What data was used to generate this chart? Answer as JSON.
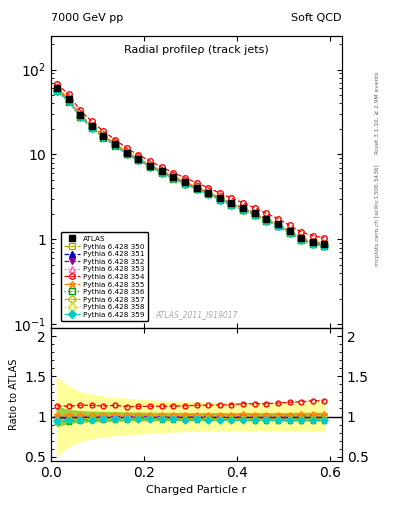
{
  "title": "Radial profileρ (track jets)",
  "top_left_label": "7000 GeV pp",
  "top_right_label": "Soft QCD",
  "xlabel": "Charged Particle r",
  "ylabel_bottom": "Ratio to ATLAS",
  "right_label_top": "Rivet 3.1.10, ≥ 2.9M events",
  "right_label_bottom": "mcplots.cern.ch [arXiv:1306.3436]",
  "watermark": "ATLAS_2011_I919017",
  "r_values": [
    0.0125,
    0.0375,
    0.0625,
    0.0875,
    0.1125,
    0.1375,
    0.1625,
    0.1875,
    0.2125,
    0.2375,
    0.2625,
    0.2875,
    0.3125,
    0.3375,
    0.3625,
    0.3875,
    0.4125,
    0.4375,
    0.4625,
    0.4875,
    0.5125,
    0.5375,
    0.5625,
    0.5875
  ],
  "atlas_data": [
    60,
    45,
    29,
    21.5,
    16.5,
    13.2,
    10.5,
    8.8,
    7.4,
    6.3,
    5.4,
    4.7,
    4.05,
    3.55,
    3.05,
    2.65,
    2.32,
    2.02,
    1.74,
    1.5,
    1.24,
    1.03,
    0.92,
    0.87
  ],
  "series": [
    {
      "label": "Pythia 6.428 350",
      "color": "#aaaa00",
      "marker": "s",
      "marker_fill": "none",
      "linestyle": "--",
      "data": [
        57,
        43,
        28,
        20.8,
        16.0,
        12.9,
        10.2,
        8.6,
        7.25,
        6.15,
        5.25,
        4.56,
        3.95,
        3.45,
        2.95,
        2.55,
        2.24,
        1.94,
        1.67,
        1.44,
        1.19,
        0.99,
        0.88,
        0.84
      ],
      "ratio": [
        0.95,
        0.96,
        0.965,
        0.968,
        0.97,
        0.977,
        0.971,
        0.977,
        0.98,
        0.976,
        0.972,
        0.97,
        0.975,
        0.972,
        0.967,
        0.962,
        0.966,
        0.96,
        0.96,
        0.96,
        0.96,
        0.961,
        0.957,
        0.966
      ]
    },
    {
      "label": "Pythia 6.428 351",
      "color": "#0000cc",
      "marker": "^",
      "marker_fill": "full",
      "linestyle": "--",
      "data": [
        58,
        44,
        28.5,
        21.2,
        16.3,
        13.1,
        10.4,
        8.75,
        7.35,
        6.25,
        5.35,
        4.65,
        4.02,
        3.51,
        3.01,
        2.61,
        2.3,
        1.99,
        1.71,
        1.47,
        1.22,
        1.01,
        0.9,
        0.855
      ],
      "ratio": [
        0.97,
        0.978,
        0.983,
        0.986,
        0.988,
        0.992,
        0.99,
        0.994,
        0.993,
        0.992,
        0.991,
        0.989,
        0.992,
        0.989,
        0.987,
        0.985,
        0.991,
        0.985,
        0.983,
        0.98,
        0.984,
        0.981,
        0.978,
        0.983
      ]
    },
    {
      "label": "Pythia 6.428 352",
      "color": "#880099",
      "marker": "v",
      "marker_fill": "full",
      "linestyle": "--",
      "data": [
        59,
        44.5,
        28.8,
        21.4,
        16.4,
        13.2,
        10.45,
        8.78,
        7.38,
        6.27,
        5.37,
        4.67,
        4.03,
        3.52,
        3.02,
        2.62,
        2.31,
        2.0,
        1.72,
        1.48,
        1.23,
        1.02,
        0.91,
        0.86
      ],
      "ratio": [
        0.983,
        0.989,
        0.993,
        0.995,
        0.994,
        1.0,
        0.995,
        0.998,
        0.997,
        0.995,
        0.994,
        0.994,
        0.995,
        0.992,
        0.99,
        0.989,
        0.996,
        0.99,
        0.989,
        0.987,
        0.992,
        0.99,
        0.989,
        0.989
      ]
    },
    {
      "label": "Pythia 6.428 353",
      "color": "#ff66aa",
      "marker": "^",
      "marker_fill": "none",
      "linestyle": ":",
      "data": [
        60,
        45,
        29,
        21.5,
        16.5,
        13.25,
        10.5,
        8.82,
        7.42,
        6.3,
        5.4,
        4.7,
        4.06,
        3.55,
        3.05,
        2.65,
        2.33,
        2.02,
        1.74,
        1.5,
        1.25,
        1.04,
        0.928,
        0.878
      ],
      "ratio": [
        1.0,
        1.0,
        1.0,
        1.0,
        1.0,
        1.004,
        1.0,
        1.002,
        1.003,
        1.0,
        1.0,
        1.0,
        1.002,
        1.0,
        1.0,
        1.0,
        1.004,
        1.0,
        1.0,
        1.0,
        1.008,
        1.01,
        1.009,
        1.009
      ]
    },
    {
      "label": "Pythia 6.428 354",
      "color": "#ff0000",
      "marker": "o",
      "marker_fill": "none",
      "linestyle": "--",
      "data": [
        68,
        51,
        33,
        24.5,
        18.7,
        15.0,
        11.8,
        9.9,
        8.35,
        7.1,
        6.1,
        5.32,
        4.62,
        4.05,
        3.49,
        3.04,
        2.69,
        2.34,
        2.02,
        1.75,
        1.46,
        1.22,
        1.1,
        1.04
      ],
      "ratio": [
        1.13,
        1.13,
        1.14,
        1.14,
        1.13,
        1.14,
        1.124,
        1.125,
        1.128,
        1.127,
        1.13,
        1.132,
        1.14,
        1.141,
        1.144,
        1.147,
        1.159,
        1.158,
        1.161,
        1.167,
        1.177,
        1.184,
        1.196,
        1.195
      ]
    },
    {
      "label": "Pythia 6.428 355",
      "color": "#ff8800",
      "marker": "*",
      "marker_fill": "full",
      "linestyle": "--",
      "data": [
        61,
        46,
        29.5,
        21.9,
        16.8,
        13.5,
        10.7,
        8.98,
        7.55,
        6.42,
        5.5,
        4.79,
        4.14,
        3.62,
        3.11,
        2.7,
        2.38,
        2.06,
        1.77,
        1.53,
        1.27,
        1.06,
        0.946,
        0.895
      ],
      "ratio": [
        1.017,
        1.022,
        1.017,
        1.019,
        1.018,
        1.023,
        1.019,
        1.02,
        1.02,
        1.019,
        1.019,
        1.019,
        1.022,
        1.02,
        1.02,
        1.019,
        1.026,
        1.02,
        1.017,
        1.02,
        1.024,
        1.029,
        1.028,
        1.028
      ]
    },
    {
      "label": "Pythia 6.428 356",
      "color": "#009900",
      "marker": "s",
      "marker_fill": "none",
      "linestyle": ":",
      "data": [
        56,
        42,
        27.5,
        20.5,
        15.8,
        12.7,
        10.1,
        8.5,
        7.15,
        6.07,
        5.19,
        4.5,
        3.89,
        3.4,
        2.91,
        2.52,
        2.22,
        1.92,
        1.65,
        1.42,
        1.17,
        0.975,
        0.869,
        0.825
      ],
      "ratio": [
        0.933,
        0.933,
        0.948,
        0.953,
        0.958,
        0.962,
        0.962,
        0.966,
        0.966,
        0.963,
        0.961,
        0.957,
        0.96,
        0.958,
        0.954,
        0.951,
        0.957,
        0.95,
        0.948,
        0.947,
        0.944,
        0.946,
        0.945,
        0.948
      ]
    },
    {
      "label": "Pythia 6.428 357",
      "color": "#bbbb00",
      "marker": "D",
      "marker_fill": "none",
      "linestyle": "--",
      "data": [
        57.5,
        43.5,
        28.2,
        21.0,
        16.1,
        13.0,
        10.3,
        8.65,
        7.28,
        6.18,
        5.28,
        4.58,
        3.97,
        3.47,
        2.97,
        2.57,
        2.26,
        1.96,
        1.69,
        1.45,
        1.2,
        1.0,
        0.892,
        0.845
      ],
      "ratio": [
        0.958,
        0.967,
        0.972,
        0.977,
        0.976,
        0.985,
        0.981,
        0.983,
        0.984,
        0.981,
        0.978,
        0.975,
        0.98,
        0.977,
        0.974,
        0.97,
        0.974,
        0.97,
        0.971,
        0.967,
        0.968,
        0.971,
        0.97,
        0.971
      ]
    },
    {
      "label": "Pythia 6.428 358",
      "color": "#dddd00",
      "marker": "D",
      "marker_fill": "none",
      "linestyle": ":",
      "data": [
        56.5,
        43.0,
        27.9,
        20.7,
        15.9,
        12.8,
        10.15,
        8.55,
        7.2,
        6.1,
        5.21,
        4.52,
        3.91,
        3.41,
        2.92,
        2.53,
        2.22,
        1.93,
        1.66,
        1.43,
        1.18,
        0.984,
        0.877,
        0.832
      ],
      "ratio": [
        0.942,
        0.956,
        0.962,
        0.963,
        0.964,
        0.97,
        0.967,
        0.971,
        0.973,
        0.968,
        0.965,
        0.962,
        0.965,
        0.961,
        0.957,
        0.955,
        0.957,
        0.956,
        0.954,
        0.953,
        0.952,
        0.955,
        0.953,
        0.956
      ]
    },
    {
      "label": "Pythia 6.428 359",
      "color": "#00cccc",
      "marker": "D",
      "marker_fill": "full",
      "linestyle": "--",
      "data": [
        56.5,
        43.0,
        27.9,
        20.7,
        15.9,
        12.8,
        10.15,
        8.55,
        7.2,
        6.1,
        5.21,
        4.52,
        3.91,
        3.41,
        2.92,
        2.53,
        2.22,
        1.93,
        1.66,
        1.43,
        1.18,
        0.984,
        0.877,
        0.832
      ],
      "ratio": [
        0.942,
        0.956,
        0.962,
        0.963,
        0.964,
        0.97,
        0.967,
        0.971,
        0.973,
        0.968,
        0.965,
        0.962,
        0.965,
        0.961,
        0.957,
        0.955,
        0.957,
        0.956,
        0.954,
        0.953,
        0.952,
        0.955,
        0.953,
        0.956
      ]
    }
  ],
  "band_green_low": [
    0.88,
    0.92,
    0.935,
    0.94,
    0.945,
    0.948,
    0.95,
    0.952,
    0.954,
    0.955,
    0.956,
    0.957,
    0.958,
    0.958,
    0.958,
    0.958,
    0.958,
    0.958,
    0.958,
    0.957,
    0.957,
    0.956,
    0.955,
    0.954
  ],
  "band_green_high": [
    1.12,
    1.08,
    1.065,
    1.06,
    1.055,
    1.052,
    1.05,
    1.048,
    1.046,
    1.045,
    1.044,
    1.043,
    1.042,
    1.042,
    1.042,
    1.042,
    1.042,
    1.042,
    1.042,
    1.043,
    1.043,
    1.044,
    1.045,
    1.046
  ],
  "band_yellow_low": [
    0.52,
    0.63,
    0.7,
    0.73,
    0.755,
    0.77,
    0.78,
    0.79,
    0.8,
    0.81,
    0.815,
    0.82,
    0.825,
    0.828,
    0.83,
    0.832,
    0.833,
    0.834,
    0.834,
    0.833,
    0.831,
    0.829,
    0.826,
    0.823
  ],
  "band_yellow_high": [
    1.48,
    1.37,
    1.3,
    1.27,
    1.245,
    1.23,
    1.22,
    1.21,
    1.2,
    1.19,
    1.185,
    1.18,
    1.175,
    1.172,
    1.17,
    1.168,
    1.167,
    1.166,
    1.166,
    1.167,
    1.169,
    1.171,
    1.174,
    1.177
  ]
}
